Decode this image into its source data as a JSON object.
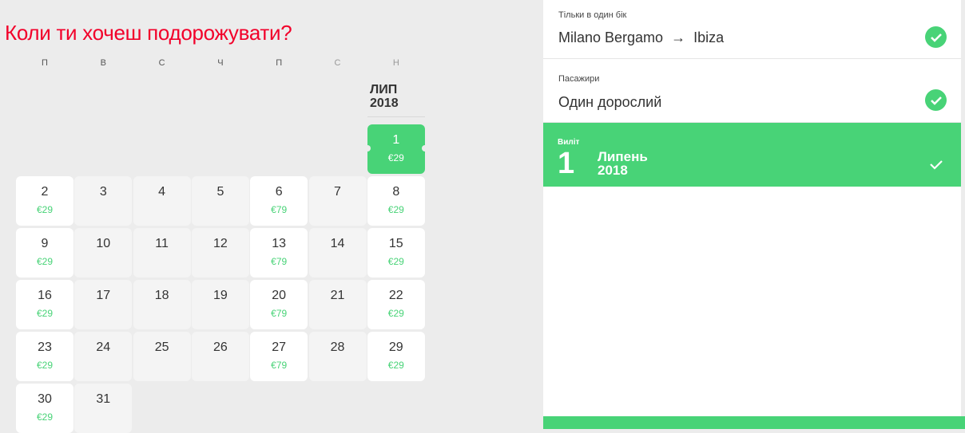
{
  "title": "Коли ти хочеш подорожувати?",
  "weekdays": [
    "П",
    "В",
    "С",
    "Ч",
    "П",
    "С",
    "Н"
  ],
  "month": {
    "name": "ЛИП",
    "year": "2018"
  },
  "days": [
    {
      "day": "1",
      "price": "€29",
      "selected": true
    },
    {
      "day": "2",
      "price": "€29"
    },
    {
      "day": "3",
      "price": ""
    },
    {
      "day": "4",
      "price": ""
    },
    {
      "day": "5",
      "price": ""
    },
    {
      "day": "6",
      "price": "€79"
    },
    {
      "day": "7",
      "price": ""
    },
    {
      "day": "8",
      "price": "€29"
    },
    {
      "day": "9",
      "price": "€29"
    },
    {
      "day": "10",
      "price": ""
    },
    {
      "day": "11",
      "price": ""
    },
    {
      "day": "12",
      "price": ""
    },
    {
      "day": "13",
      "price": "€79"
    },
    {
      "day": "14",
      "price": ""
    },
    {
      "day": "15",
      "price": "€29"
    },
    {
      "day": "16",
      "price": "€29"
    },
    {
      "day": "17",
      "price": ""
    },
    {
      "day": "18",
      "price": ""
    },
    {
      "day": "19",
      "price": ""
    },
    {
      "day": "20",
      "price": "€79"
    },
    {
      "day": "21",
      "price": ""
    },
    {
      "day": "22",
      "price": "€29"
    },
    {
      "day": "23",
      "price": "€29"
    },
    {
      "day": "24",
      "price": ""
    },
    {
      "day": "25",
      "price": ""
    },
    {
      "day": "26",
      "price": ""
    },
    {
      "day": "27",
      "price": "€79"
    },
    {
      "day": "28",
      "price": ""
    },
    {
      "day": "29",
      "price": "€29"
    },
    {
      "day": "30",
      "price": "€29"
    },
    {
      "day": "31",
      "price": ""
    }
  ],
  "summary": {
    "trip": {
      "label": "Тільки в один бік",
      "value": "Milano Bergamo  →  Ibiza"
    },
    "passengers": {
      "label": "Пасажири",
      "value": "Один дорослий"
    },
    "departure": {
      "label": "Виліт",
      "day": "1",
      "month": "Липень",
      "year": "2018"
    }
  },
  "colors": {
    "accent": "#48d377",
    "title": "#f2002a"
  }
}
